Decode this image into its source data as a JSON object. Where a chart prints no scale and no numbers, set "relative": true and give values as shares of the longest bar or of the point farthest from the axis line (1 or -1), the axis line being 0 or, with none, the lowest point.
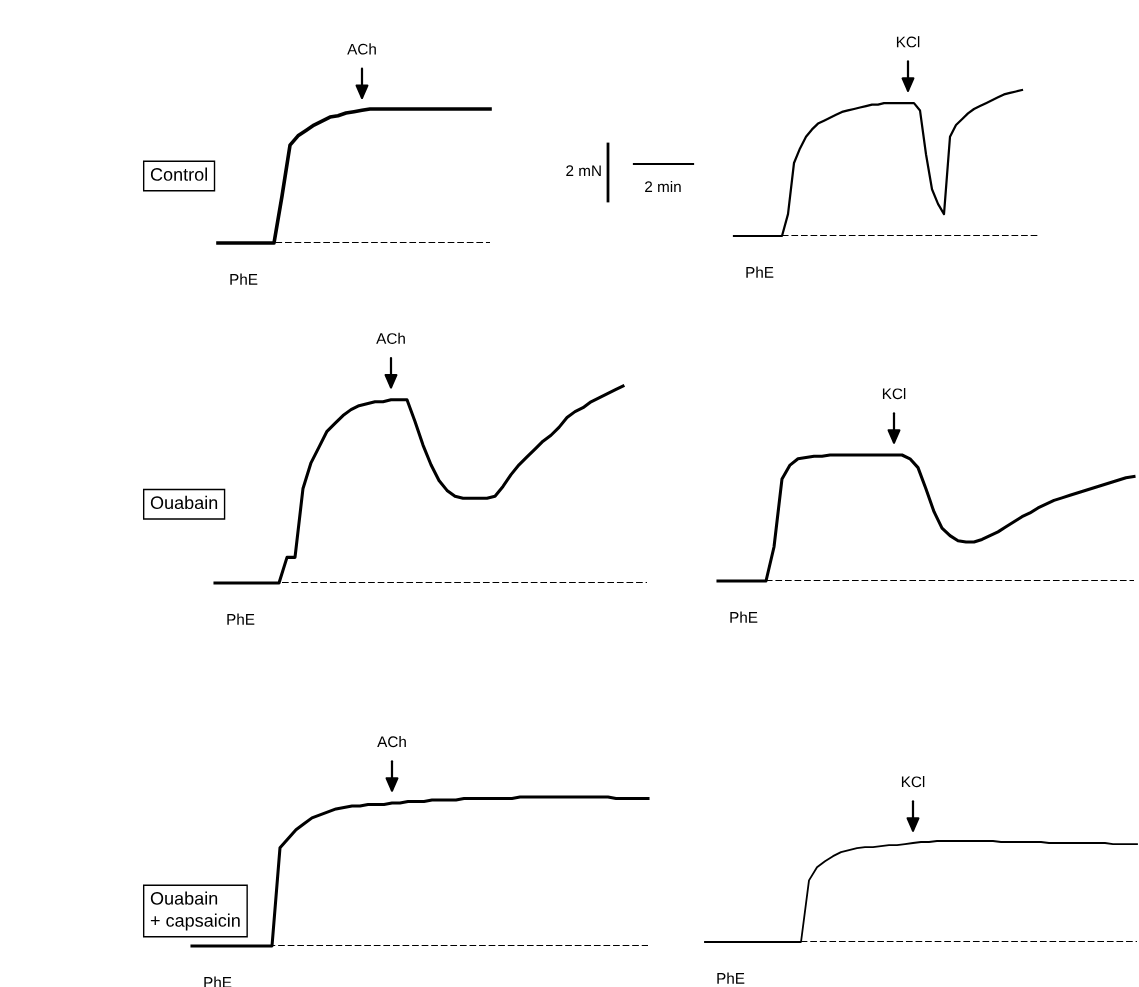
{
  "chart_data": [
    {
      "type": "line",
      "relative": true,
      "tick_labels": false,
      "marker": "none",
      "line_style": "solid",
      "categories": [
        null,
        null,
        null,
        null,
        null,
        null,
        null,
        null,
        null,
        null,
        null,
        null,
        null,
        null,
        null,
        null,
        null,
        null,
        null,
        null,
        null,
        null,
        null,
        null,
        null,
        null,
        null,
        null,
        null,
        null,
        null,
        null,
        null,
        null,
        null
      ],
      "series": [
        {
          "color": "#000000",
          "values": [
            0,
            0,
            0,
            0,
            0,
            0,
            0,
            0,
            0.35,
            0.73,
            0.8,
            0.84,
            0.88,
            0.91,
            0.94,
            0.95,
            0.97,
            0.98,
            0.99,
            1,
            1,
            1,
            1,
            1,
            1,
            1,
            1,
            1,
            1,
            1,
            1,
            1,
            1,
            1,
            1
          ]
        }
      ],
      "ref_lines": [
        {
          "axis": "y",
          "value": 0,
          "line_style": "dashed",
          "color": "#000000"
        }
      ],
      "annotations": [
        "ACh",
        "PhE",
        "Control"
      ]
    },
    {
      "type": "line",
      "relative": true,
      "tick_labels": false,
      "marker": "none",
      "line_style": "solid",
      "categories": [
        null,
        null,
        null,
        null,
        null,
        null,
        null,
        null,
        null,
        null,
        null,
        null,
        null,
        null,
        null,
        null,
        null,
        null,
        null,
        null,
        null,
        null,
        null,
        null,
        null,
        null,
        null,
        null,
        null,
        null,
        null,
        null,
        null,
        null,
        null,
        null,
        null,
        null,
        null,
        null,
        null,
        null,
        null,
        null,
        null,
        null,
        null,
        null,
        null,
        null,
        null,
        null
      ],
      "series": [
        {
          "color": "#000000",
          "values": [
            0,
            0,
            0,
            0,
            0,
            0,
            0,
            0,
            0,
            0.15,
            0.5,
            0.6,
            0.68,
            0.73,
            0.77,
            0.79,
            0.81,
            0.83,
            0.85,
            0.86,
            0.87,
            0.88,
            0.89,
            0.9,
            0.9,
            0.91,
            0.91,
            0.91,
            0.91,
            0.91,
            0.91,
            0.86,
            0.56,
            0.32,
            0.22,
            0.15,
            0.68,
            0.76,
            0.8,
            0.84,
            0.87,
            0.89,
            0.91,
            0.93,
            0.95,
            0.97,
            0.98,
            0.99,
            1,
            null,
            null,
            null
          ]
        }
      ],
      "ref_lines": [
        {
          "axis": "y",
          "value": 0,
          "line_style": "dashed",
          "color": "#000000"
        }
      ],
      "annotations": [
        "KCl",
        "PhE",
        "2 mN",
        "2 min"
      ]
    },
    {
      "type": "line",
      "relative": true,
      "tick_labels": false,
      "marker": "none",
      "line_style": "solid",
      "categories": [
        null,
        null,
        null,
        null,
        null,
        null,
        null,
        null,
        null,
        null,
        null,
        null,
        null,
        null,
        null,
        null,
        null,
        null,
        null,
        null,
        null,
        null,
        null,
        null,
        null,
        null,
        null,
        null,
        null,
        null,
        null,
        null,
        null,
        null,
        null,
        null,
        null,
        null,
        null,
        null,
        null,
        null,
        null,
        null,
        null,
        null,
        null,
        null,
        null,
        null,
        null,
        null,
        null,
        null,
        null
      ],
      "series": [
        {
          "color": "#000000",
          "values": [
            0,
            0,
            0,
            0,
            0,
            0,
            0,
            0,
            0,
            0.13,
            0.13,
            0.48,
            0.61,
            0.69,
            0.77,
            0.81,
            0.85,
            0.88,
            0.9,
            0.91,
            0.92,
            0.92,
            0.93,
            0.93,
            0.93,
            0.82,
            0.7,
            0.6,
            0.52,
            0.47,
            0.44,
            0.43,
            0.43,
            0.43,
            0.43,
            0.44,
            0.49,
            0.55,
            0.6,
            0.64,
            0.68,
            0.72,
            0.75,
            0.79,
            0.84,
            0.87,
            0.89,
            0.92,
            0.94,
            0.96,
            0.98,
            1,
            null,
            null,
            null
          ]
        }
      ],
      "ref_lines": [
        {
          "axis": "y",
          "value": 0,
          "line_style": "dashed",
          "color": "#000000"
        }
      ],
      "annotations": [
        "ACh",
        "PhE",
        "Ouabain"
      ]
    },
    {
      "type": "line",
      "relative": true,
      "tick_labels": false,
      "marker": "none",
      "line_style": "solid",
      "categories": [
        null,
        null,
        null,
        null,
        null,
        null,
        null,
        null,
        null,
        null,
        null,
        null,
        null,
        null,
        null,
        null,
        null,
        null,
        null,
        null,
        null,
        null,
        null,
        null,
        null,
        null,
        null,
        null,
        null,
        null,
        null,
        null,
        null,
        null,
        null,
        null,
        null,
        null,
        null,
        null,
        null,
        null,
        null,
        null,
        null,
        null,
        null,
        null,
        null,
        null,
        null,
        null,
        null
      ],
      "series": [
        {
          "color": "#000000",
          "values": [
            0,
            0,
            0,
            0,
            0,
            0,
            0,
            0.27,
            0.81,
            0.92,
            0.97,
            0.98,
            0.99,
            0.99,
            1,
            1,
            1,
            1,
            1,
            1,
            1,
            1,
            1,
            1,
            0.97,
            0.9,
            0.73,
            0.55,
            0.42,
            0.36,
            0.32,
            0.31,
            0.31,
            0.33,
            0.36,
            0.39,
            0.43,
            0.47,
            0.51,
            0.54,
            0.58,
            0.61,
            0.64,
            0.66,
            0.68,
            0.7,
            0.72,
            0.74,
            0.76,
            0.78,
            0.8,
            0.82,
            0.83
          ]
        }
      ],
      "ref_lines": [
        {
          "axis": "y",
          "value": 0,
          "line_style": "dashed",
          "color": "#000000"
        }
      ],
      "annotations": [
        "KCl",
        "PhE"
      ]
    },
    {
      "type": "line",
      "relative": true,
      "tick_labels": false,
      "marker": "none",
      "line_style": "solid",
      "categories": [
        null,
        null,
        null,
        null,
        null,
        null,
        null,
        null,
        null,
        null,
        null,
        null,
        null,
        null,
        null,
        null,
        null,
        null,
        null,
        null,
        null,
        null,
        null,
        null,
        null,
        null,
        null,
        null,
        null,
        null,
        null,
        null,
        null,
        null,
        null,
        null,
        null,
        null,
        null,
        null,
        null,
        null,
        null,
        null,
        null,
        null,
        null,
        null,
        null,
        null,
        null,
        null,
        null,
        null,
        null,
        null,
        null,
        null
      ],
      "series": [
        {
          "color": "#000000",
          "values": [
            0,
            0,
            0,
            0,
            0,
            0,
            0,
            0,
            0,
            0,
            0,
            0.66,
            0.72,
            0.78,
            0.82,
            0.86,
            0.88,
            0.9,
            0.92,
            0.93,
            0.94,
            0.94,
            0.95,
            0.95,
            0.95,
            0.96,
            0.96,
            0.97,
            0.97,
            0.97,
            0.98,
            0.98,
            0.98,
            0.98,
            0.99,
            0.99,
            0.99,
            0.99,
            0.99,
            0.99,
            0.99,
            1,
            1,
            1,
            1,
            1,
            1,
            1,
            1,
            1,
            1,
            1,
            1,
            0.99,
            0.99,
            0.99,
            0.99,
            0.99
          ]
        }
      ],
      "ref_lines": [
        {
          "axis": "y",
          "value": 0,
          "line_style": "dashed",
          "color": "#000000"
        }
      ],
      "annotations": [
        "ACh",
        "PhE",
        "Ouabain\n+ capsaicin"
      ]
    },
    {
      "type": "line",
      "relative": true,
      "tick_labels": false,
      "marker": "none",
      "line_style": "solid",
      "categories": [
        null,
        null,
        null,
        null,
        null,
        null,
        null,
        null,
        null,
        null,
        null,
        null,
        null,
        null,
        null,
        null,
        null,
        null,
        null,
        null,
        null,
        null,
        null,
        null,
        null,
        null,
        null,
        null,
        null,
        null,
        null,
        null,
        null,
        null,
        null,
        null,
        null,
        null,
        null,
        null,
        null,
        null,
        null,
        null,
        null,
        null,
        null,
        null,
        null,
        null,
        null,
        null,
        null,
        null,
        null
      ],
      "series": [
        {
          "color": "#000000",
          "values": [
            0,
            0,
            0,
            0,
            0,
            0,
            0,
            0,
            0,
            0,
            0,
            0,
            0,
            0.61,
            0.74,
            0.8,
            0.85,
            0.89,
            0.91,
            0.93,
            0.94,
            0.94,
            0.95,
            0.96,
            0.96,
            0.97,
            0.98,
            0.99,
            0.99,
            1,
            1,
            1,
            1,
            1,
            1,
            1,
            1,
            0.99,
            0.99,
            0.99,
            0.99,
            0.99,
            0.99,
            0.98,
            0.98,
            0.98,
            0.98,
            0.98,
            0.98,
            0.98,
            0.98,
            0.97,
            0.97,
            0.97,
            0.97
          ]
        }
      ],
      "ref_lines": [
        {
          "axis": "y",
          "value": 0,
          "line_style": "dashed",
          "color": "#000000"
        }
      ],
      "annotations": [
        "KCl",
        "PhE"
      ]
    }
  ]
}
